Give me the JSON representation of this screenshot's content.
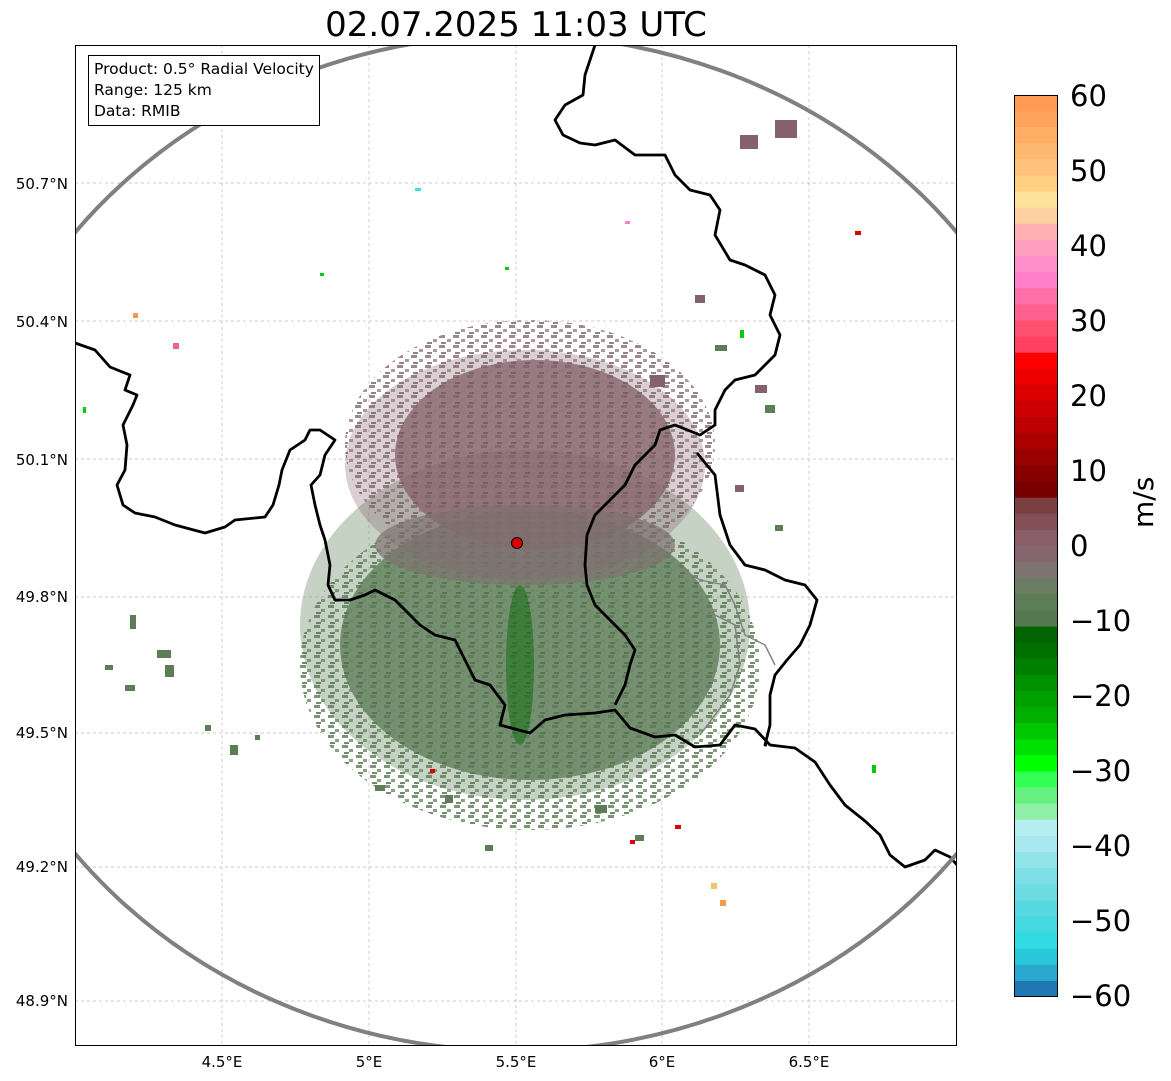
{
  "title": "02.07.2025 11:03 UTC",
  "info": {
    "product": "Product: 0.5° Radial Velocity",
    "range": "Range: 125 km",
    "data": "Data: RMIB"
  },
  "lat_ticks": [
    "50.7°N",
    "50.4°N",
    "50.1°N",
    "49.8°N",
    "49.5°N",
    "49.2°N",
    "48.9°N"
  ],
  "lon_ticks": [
    "4.5°E",
    "5°E",
    "5.5°E",
    "6°E",
    "6.5°E"
  ],
  "colorbar": {
    "unit": "m/s",
    "ticks": [
      "60",
      "50",
      "40",
      "30",
      "20",
      "10",
      "0",
      "−10",
      "−20",
      "−30",
      "−40",
      "−50",
      "−60"
    ],
    "range": [
      -60,
      60
    ]
  },
  "colors": {
    "range_ring": "#808080",
    "border": "#000000",
    "radar_site": "#dd0000",
    "inbound": "#5d7d57",
    "outbound": "#84616b"
  }
}
